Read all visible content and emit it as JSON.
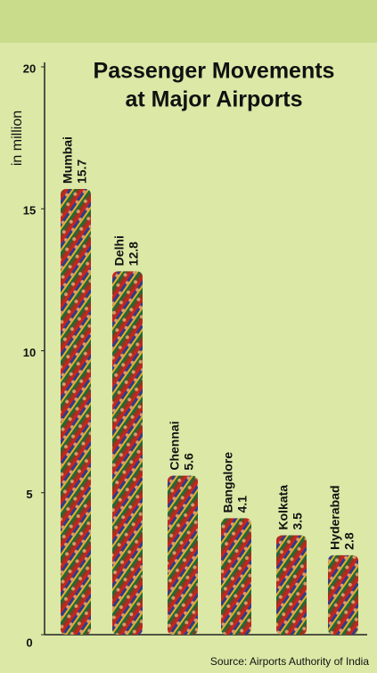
{
  "chart_data": {
    "type": "bar",
    "title_lines": [
      "Passenger Movements",
      "at Major Airports"
    ],
    "y_label": "in million",
    "categories": [
      "Mumbai",
      "Delhi",
      "Chennai",
      "Bangalore",
      "Kolkata",
      "Hyderabad"
    ],
    "values": [
      15.7,
      12.8,
      5.6,
      4.1,
      3.5,
      2.8
    ],
    "ylim": [
      0,
      20
    ],
    "yticks": [
      0,
      5,
      10,
      15,
      20
    ],
    "source": "Source: Airports Authority of India"
  }
}
